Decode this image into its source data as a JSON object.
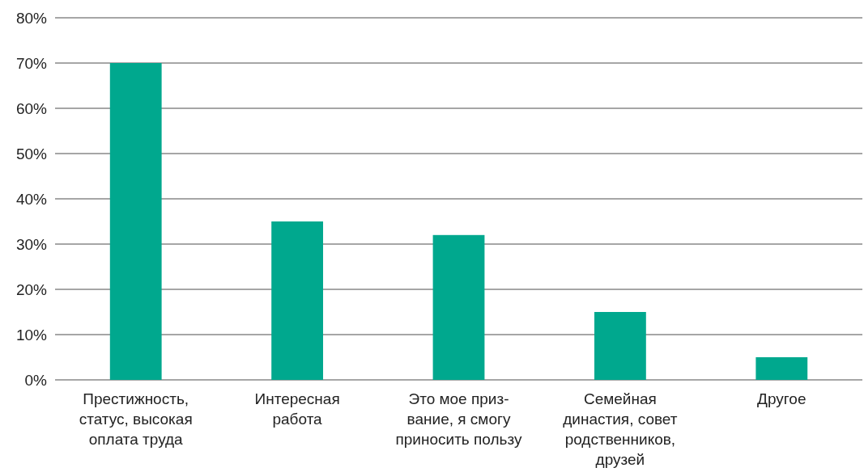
{
  "chart_data": {
    "type": "bar",
    "categories": [
      "Престижность,\nстатус, высокая\nоплата труда",
      "Интересная\nработа",
      "Это мое приз-\nвание, я смогу\nприносить пользу",
      "Семейная\nдинастия, совет\nродственников,\nдрузей",
      "Другое"
    ],
    "values": [
      70,
      35,
      32,
      15,
      5
    ],
    "color": "#00a88e",
    "ylim": [
      0,
      80
    ],
    "yticks": [
      {
        "value": 0,
        "label": "0%"
      },
      {
        "value": 10,
        "label": "10%"
      },
      {
        "value": 20,
        "label": "20%"
      },
      {
        "value": 30,
        "label": "30%"
      },
      {
        "value": 40,
        "label": "40%"
      },
      {
        "value": 50,
        "label": "50%"
      },
      {
        "value": 60,
        "label": "60%"
      },
      {
        "value": 70,
        "label": "70%"
      },
      {
        "value": 80,
        "label": "80%"
      }
    ],
    "grid": "y"
  }
}
